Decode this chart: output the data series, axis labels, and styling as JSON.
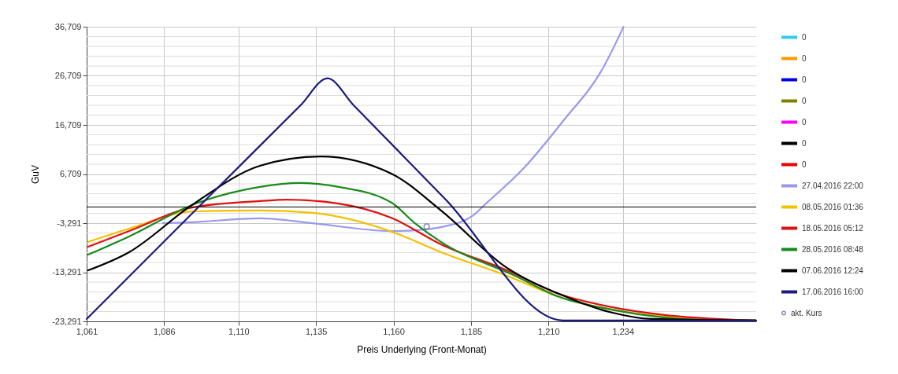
{
  "chart_data": {
    "type": "line",
    "xlabel": "Preis Underlying (Front-Monat)",
    "ylabel": "GuV",
    "xlim": [
      1061,
      1277
    ],
    "xticks": [
      {
        "value": 1061,
        "label": "1,061"
      },
      {
        "value": 1086,
        "label": "1,086"
      },
      {
        "value": 1110,
        "label": "1,110"
      },
      {
        "value": 1135,
        "label": "1,135"
      },
      {
        "value": 1160,
        "label": "1,160"
      },
      {
        "value": 1185,
        "label": "1,185"
      },
      {
        "value": 1210,
        "label": "1,210"
      },
      {
        "value": 1234,
        "label": "1,234"
      }
    ],
    "ylim": [
      -23291,
      36709
    ],
    "yticks": [
      {
        "value": -23291,
        "label": "-23,291"
      },
      {
        "value": -21291,
        "label": null
      },
      {
        "value": -19291,
        "label": null
      },
      {
        "value": -17291,
        "label": null
      },
      {
        "value": -15291,
        "label": null
      },
      {
        "value": -13291,
        "label": "-13,291"
      },
      {
        "value": -11291,
        "label": null
      },
      {
        "value": -9291,
        "label": null
      },
      {
        "value": -7291,
        "label": null
      },
      {
        "value": -5291,
        "label": null
      },
      {
        "value": -3291,
        "label": "-3,291"
      },
      {
        "value": -1291,
        "label": null
      },
      {
        "value": 709,
        "label": null
      },
      {
        "value": 2709,
        "label": null
      },
      {
        "value": 4709,
        "label": null
      },
      {
        "value": 6709,
        "label": "6,709"
      },
      {
        "value": 8709,
        "label": null
      },
      {
        "value": 10709,
        "label": null
      },
      {
        "value": 12709,
        "label": null
      },
      {
        "value": 14709,
        "label": null
      },
      {
        "value": 16709,
        "label": "16,709"
      },
      {
        "value": 18709,
        "label": null
      },
      {
        "value": 20709,
        "label": null
      },
      {
        "value": 22709,
        "label": null
      },
      {
        "value": 24709,
        "label": null
      },
      {
        "value": 26709,
        "label": "26,709"
      },
      {
        "value": 28709,
        "label": null
      },
      {
        "value": 30709,
        "label": null
      },
      {
        "value": 32709,
        "label": null
      },
      {
        "value": 34709,
        "label": null
      },
      {
        "value": 36709,
        "label": "36,709"
      }
    ],
    "grid": true,
    "legend": "right",
    "marker": "none",
    "line_style": "solid",
    "ref_lines": [
      {
        "axis": "y",
        "value": 0,
        "color": "#000000"
      }
    ],
    "series": [
      {
        "name": "0",
        "color": "#33ccee"
      },
      {
        "name": "0",
        "color": "#ff9900"
      },
      {
        "name": "0",
        "color": "#0000ee"
      },
      {
        "name": "0",
        "color": "#808000"
      },
      {
        "name": "0",
        "color": "#ff00ff"
      },
      {
        "name": "0",
        "color": "#000000"
      },
      {
        "name": "0",
        "color": "#ee0000"
      },
      {
        "name": "27.04.2016 22:00",
        "color": "#9999ee",
        "x": [
          1085.6,
          1095,
          1116.9,
          1133.9,
          1159.3,
          1167.7,
          1175.3,
          1185.7,
          1189.3,
          1202,
          1214.7,
          1227.4,
          1234.2
        ],
        "values": [
          -3300,
          -3100,
          -2300,
          -3300,
          -4900,
          -4700,
          -4100,
          -1700,
          400,
          7900,
          17500,
          28100,
          36700
        ]
      },
      {
        "name": "08.05.2016 01:36",
        "color": "#f5c000",
        "x": [
          1061.5,
          1074.7,
          1095,
          1116.9,
          1133.9,
          1159.3,
          1175.3,
          1196.6,
          1213.4,
          1230.4,
          1247.4,
          1276.9
        ],
        "values": [
          -7100,
          -4400,
          -900,
          -700,
          -1200,
          -5000,
          -9200,
          -14000,
          -18300,
          -20900,
          -22300,
          -23100
        ]
      },
      {
        "name": "18.05.2016 05:12",
        "color": "#e01010",
        "x": [
          1061.5,
          1074.7,
          1095,
          1116.9,
          1125.5,
          1142.3,
          1159.3,
          1175.3,
          1196.6,
          1213.4,
          1230.4,
          1247.4,
          1264.2,
          1276.9
        ],
        "values": [
          -8100,
          -4900,
          -100,
          1200,
          1500,
          700,
          -2200,
          -7600,
          -12900,
          -17700,
          -20400,
          -22000,
          -22800,
          -23100
        ]
      },
      {
        "name": "28.05.2016 08:48",
        "color": "#1a8a1a",
        "x": [
          1061.5,
          1074.7,
          1095,
          1116.9,
          1129.6,
          1142.3,
          1159.3,
          1166.9,
          1175.3,
          1199.2,
          1213.4,
          1230.4,
          1247.4,
          1264.2,
          1276.9
        ],
        "values": [
          -9700,
          -6000,
          400,
          4100,
          4900,
          4100,
          900,
          -3300,
          -7100,
          -14000,
          -18300,
          -20900,
          -22500,
          -23100,
          -23100
        ]
      },
      {
        "name": "07.06.2016 12:24",
        "color": "#000000",
        "x": [
          1061.5,
          1074.7,
          1095,
          1116.9,
          1136.4,
          1159.3,
          1175.3,
          1196.6,
          1213.4,
          1230.4,
          1243.1,
          1276.9
        ],
        "values": [
          -12900,
          -9200,
          400,
          8400,
          10300,
          6800,
          -700,
          -12400,
          -17700,
          -21500,
          -22800,
          -23100
        ]
      },
      {
        "name": "17.06.2016 16:00",
        "color": "#1a1a80",
        "x": [
          1061,
          1099.8,
          1130,
          1138.7,
          1147,
          1176.7,
          1214.7,
          1220,
          1276.9
        ],
        "values": [
          -22800,
          1700,
          20700,
          26200,
          20800,
          1600,
          -23100,
          -23100,
          -23100
        ]
      },
      {
        "name": "akt. Kurs",
        "type": "scatter",
        "marker": "circle",
        "color": "#5060a0",
        "x": [
          1170.7
        ],
        "values": [
          -4000
        ]
      }
    ]
  }
}
